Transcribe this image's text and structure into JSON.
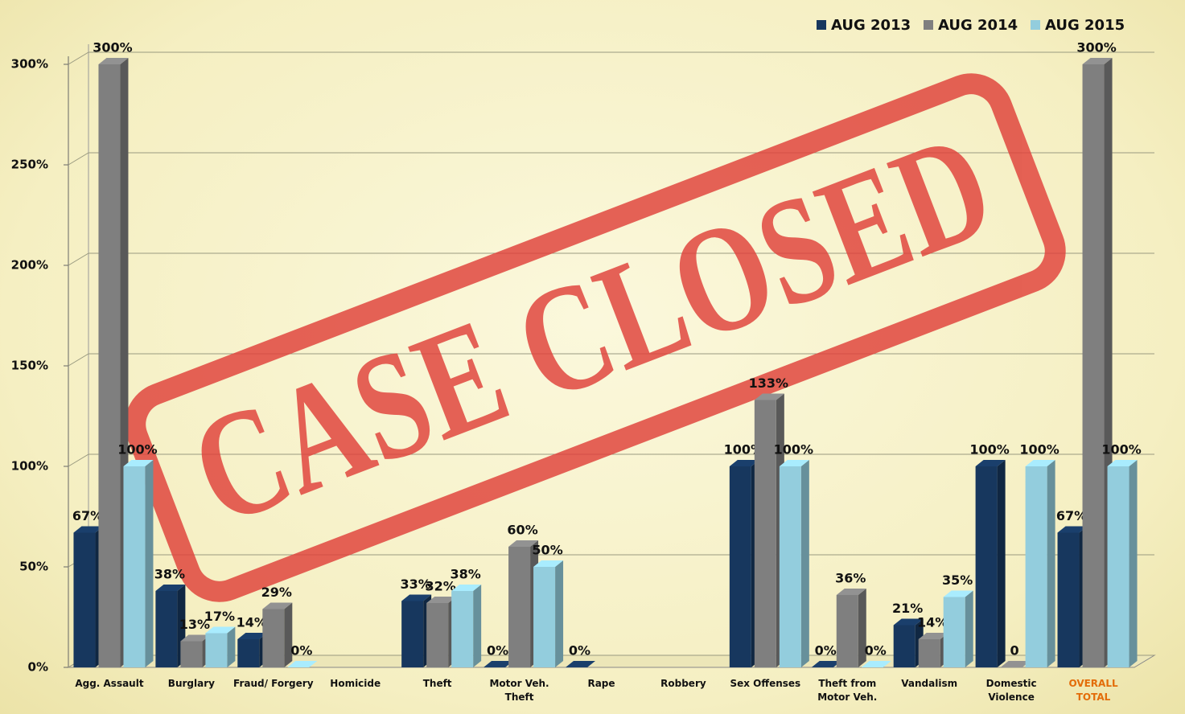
{
  "chart_data": {
    "type": "bar3d",
    "stamp": "CASE CLOSED",
    "categories": [
      "Agg. Assault",
      "Burglary",
      "Fraud/ Forgery",
      "Homicide",
      "Theft",
      "Motor Veh.\nTheft",
      "Rape",
      "Robbery",
      "Sex Offenses",
      "Theft from\nMotor Veh.",
      "Vandalism",
      "Domestic\nViolence",
      "OVERALL TOTAL"
    ],
    "series": [
      {
        "name": "AUG 2013",
        "color": "#17375e",
        "values": [
          67,
          38,
          14,
          null,
          33,
          0,
          0,
          null,
          100,
          0,
          21,
          100,
          67
        ],
        "value_labels": [
          "67%",
          "38%",
          "14%",
          null,
          "33%",
          "0%",
          "0%",
          null,
          "100%",
          "0%",
          "21%",
          "100%",
          "67%"
        ]
      },
      {
        "name": "AUG 2014",
        "color": "#7f7f7f",
        "values": [
          300,
          13,
          29,
          null,
          32,
          60,
          null,
          null,
          133,
          36,
          14,
          0,
          300
        ],
        "value_labels": [
          "300%",
          "13%",
          "29%",
          null,
          "32%",
          "60%",
          null,
          null,
          "133%",
          "36%",
          "14%",
          "0",
          "300%"
        ]
      },
      {
        "name": "AUG 2015",
        "color": "#93cddd",
        "values": [
          100,
          17,
          0,
          null,
          38,
          50,
          null,
          null,
          100,
          0,
          35,
          100,
          100
        ],
        "value_labels": [
          "100%",
          "17%",
          "0%",
          null,
          "38%",
          "50%",
          null,
          null,
          "100%",
          "0%",
          "35%",
          "100%",
          "100%"
        ]
      }
    ],
    "ylim": [
      0,
      300
    ],
    "yticks": [
      {
        "value": 0,
        "label": "0%"
      },
      {
        "value": 50,
        "label": "50%"
      },
      {
        "value": 100,
        "label": "100%"
      },
      {
        "value": 150,
        "label": "150%"
      },
      {
        "value": 200,
        "label": "200%"
      },
      {
        "value": 250,
        "label": "250%"
      },
      {
        "value": 300,
        "label": "300%"
      }
    ],
    "grid": true,
    "legend": "top-right"
  }
}
